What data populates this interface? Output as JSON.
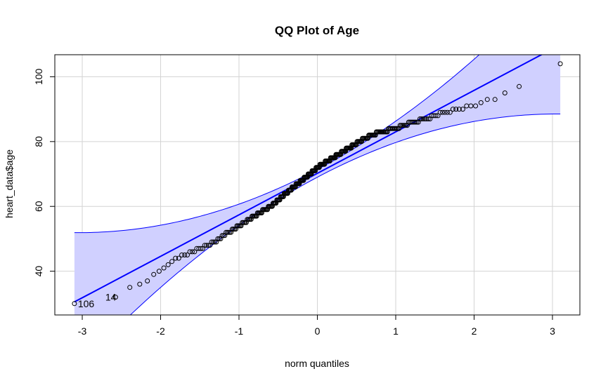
{
  "chart_data": {
    "type": "scatter",
    "title": "QQ Plot of Age",
    "xlabel": "norm quantiles",
    "ylabel": "heart_data$age",
    "xlim": [
      -3.35,
      3.35
    ],
    "ylim": [
      26.5,
      106.8
    ],
    "x_ticks": [
      -3,
      -2,
      -1,
      0,
      1,
      2,
      3
    ],
    "y_ticks": [
      40,
      60,
      80,
      100
    ],
    "grid": true,
    "reference_line": {
      "intercept": 70.2,
      "slope": 12.8,
      "color": "#0000FF"
    },
    "confidence_band": {
      "fill": "#D0D0FF",
      "stroke": "#0000FF"
    },
    "colors": {
      "points": "#000000",
      "line": "#0000FF",
      "band_fill": "#D0D0FF",
      "grid": "#D3D3D3"
    },
    "quantile_anchors": {
      "x": [
        -3.1,
        -2.75,
        -2.6,
        -2.5,
        -2.4,
        -2.2,
        -2.0,
        -1.9,
        -1.8,
        -1.7,
        -1.6,
        -1.5,
        -1.3,
        -1.2,
        -1.0,
        -0.8,
        -0.6,
        -0.4,
        -0.2,
        0.0,
        0.2,
        0.4,
        0.6,
        0.8,
        1.0,
        1.2,
        1.4,
        1.6,
        1.8,
        2.0,
        2.2,
        2.3,
        2.4,
        2.5,
        2.6,
        2.75,
        3.1
      ],
      "y": [
        30,
        32,
        32,
        33,
        35,
        37,
        40,
        42,
        44,
        45,
        46,
        47,
        49,
        51,
        54,
        57,
        60,
        64,
        68,
        72,
        75,
        78,
        81,
        83,
        84,
        86,
        87,
        89,
        90,
        91,
        93,
        93,
        95,
        96,
        97,
        102,
        104
      ]
    },
    "n_points": 299,
    "annotations": [
      {
        "text": "106",
        "x": -3.1,
        "y": 30
      },
      {
        "text": "14",
        "x": -2.75,
        "y": 32
      }
    ]
  }
}
